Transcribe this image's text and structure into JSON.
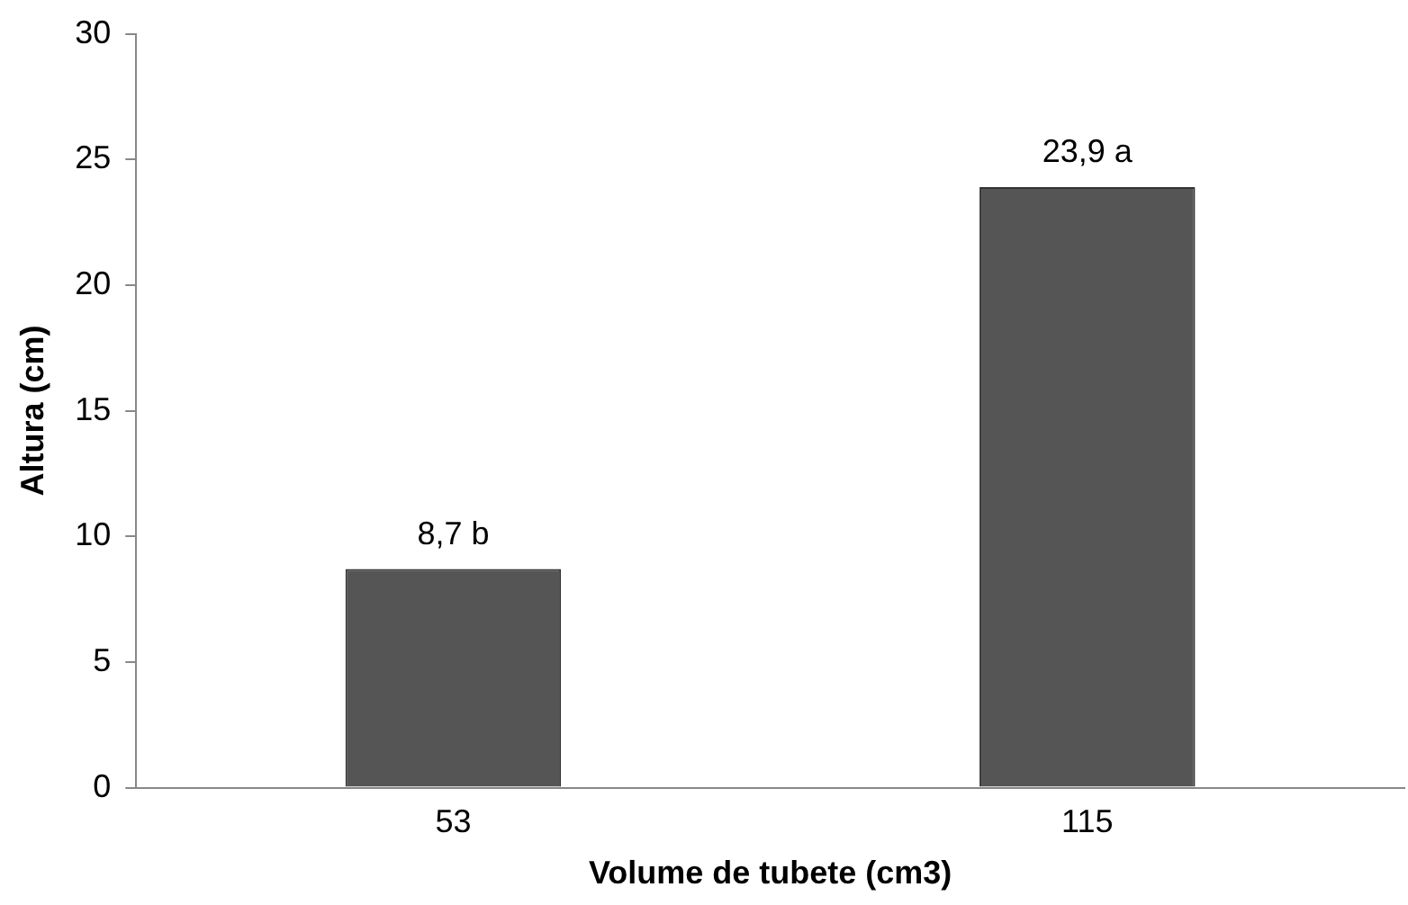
{
  "chart_data": {
    "type": "bar",
    "xlabel": "Volume de tubete (cm3)",
    "ylabel": "Altura (cm)",
    "categories": [
      "53",
      "115"
    ],
    "values": [
      8.7,
      23.9
    ],
    "value_labels": [
      "8,7 b",
      "23,9 a"
    ],
    "color": "#555555",
    "ylim": [
      0,
      30
    ],
    "yticks": [
      0,
      5,
      10,
      15,
      20,
      25,
      30
    ],
    "grid": false,
    "legend": false
  }
}
